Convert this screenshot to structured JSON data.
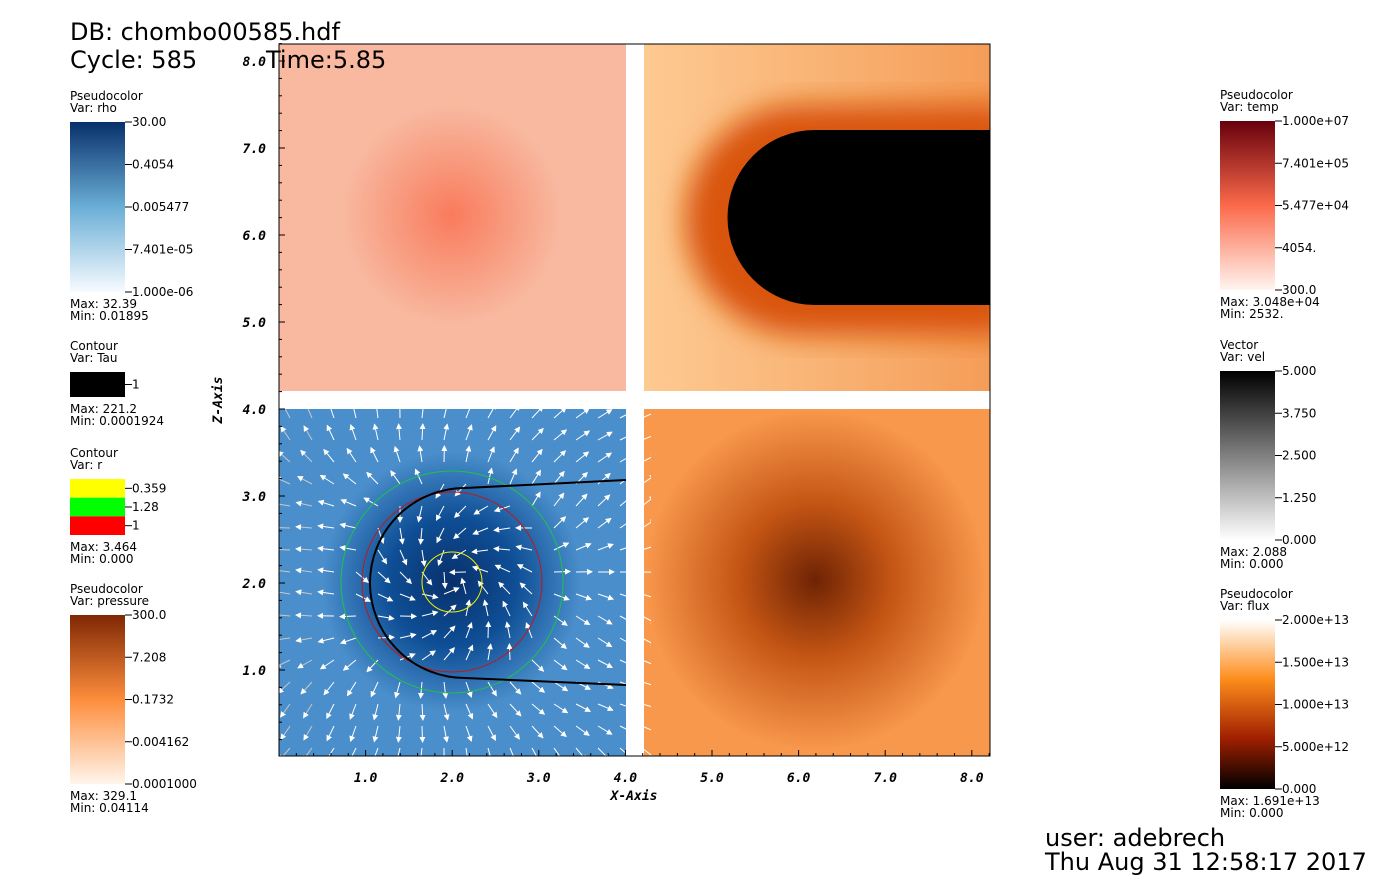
{
  "header": {
    "db": "DB: chombo00585.hdf",
    "cycle": "Cycle: 585",
    "time": "Time:5.85"
  },
  "axes": {
    "x_title": "X-Axis",
    "y_title": "Z-Axis",
    "x_ticks": [
      "1.0",
      "2.0",
      "3.0",
      "4.0",
      "5.0",
      "6.0",
      "7.0",
      "8.0"
    ],
    "y_ticks": [
      "1.0",
      "2.0",
      "3.0",
      "4.0",
      "5.0",
      "6.0",
      "7.0",
      "8.0"
    ]
  },
  "legends": [
    {
      "kind": "Pseudocolor",
      "var": "Var: rho",
      "labels": [
        "30.00",
        "0.4054",
        "0.005477",
        "7.401e-05",
        "1.000e-06"
      ],
      "max": "Max:  32.39",
      "min": "Min:  0.01895"
    },
    {
      "kind": "Contour",
      "var": "Var: Tau",
      "labels": [
        "1"
      ],
      "max": "Max:  221.2",
      "min": "Min:  0.0001924"
    },
    {
      "kind": "Contour",
      "var": "Var: r",
      "labels": [
        "0.359",
        "1.28",
        "1"
      ],
      "max": "Max:  3.464",
      "min": "Min:  0.000"
    },
    {
      "kind": "Pseudocolor",
      "var": "Var: pressure",
      "labels": [
        "300.0",
        "7.208",
        "0.1732",
        "0.004162",
        "0.0001000"
      ],
      "max": "Max:  329.1",
      "min": "Min:  0.04114"
    },
    {
      "kind": "Pseudocolor",
      "var": "Var: temp",
      "labels": [
        "1.000e+07",
        "7.401e+05",
        "5.477e+04",
        "4054.",
        "300.0"
      ],
      "max": "Max:  3.048e+04",
      "min": "Min:  2532."
    },
    {
      "kind": "Vector",
      "var": "Var: vel",
      "labels": [
        "5.000",
        "3.750",
        "2.500",
        "1.250",
        "0.000"
      ],
      "max": "Max:  2.088",
      "min": "Min:  0.000"
    },
    {
      "kind": "Pseudocolor",
      "var": "Var: flux",
      "labels": [
        "2.000e+13",
        "1.500e+13",
        "1.000e+13",
        "5.000e+12",
        "0.000"
      ],
      "max": "Max:  1.691e+13",
      "min": "Min:  0.000"
    }
  ],
  "footer": {
    "user": "user: adebrech",
    "date": "Thu Aug 31 12:58:17 2017"
  }
}
